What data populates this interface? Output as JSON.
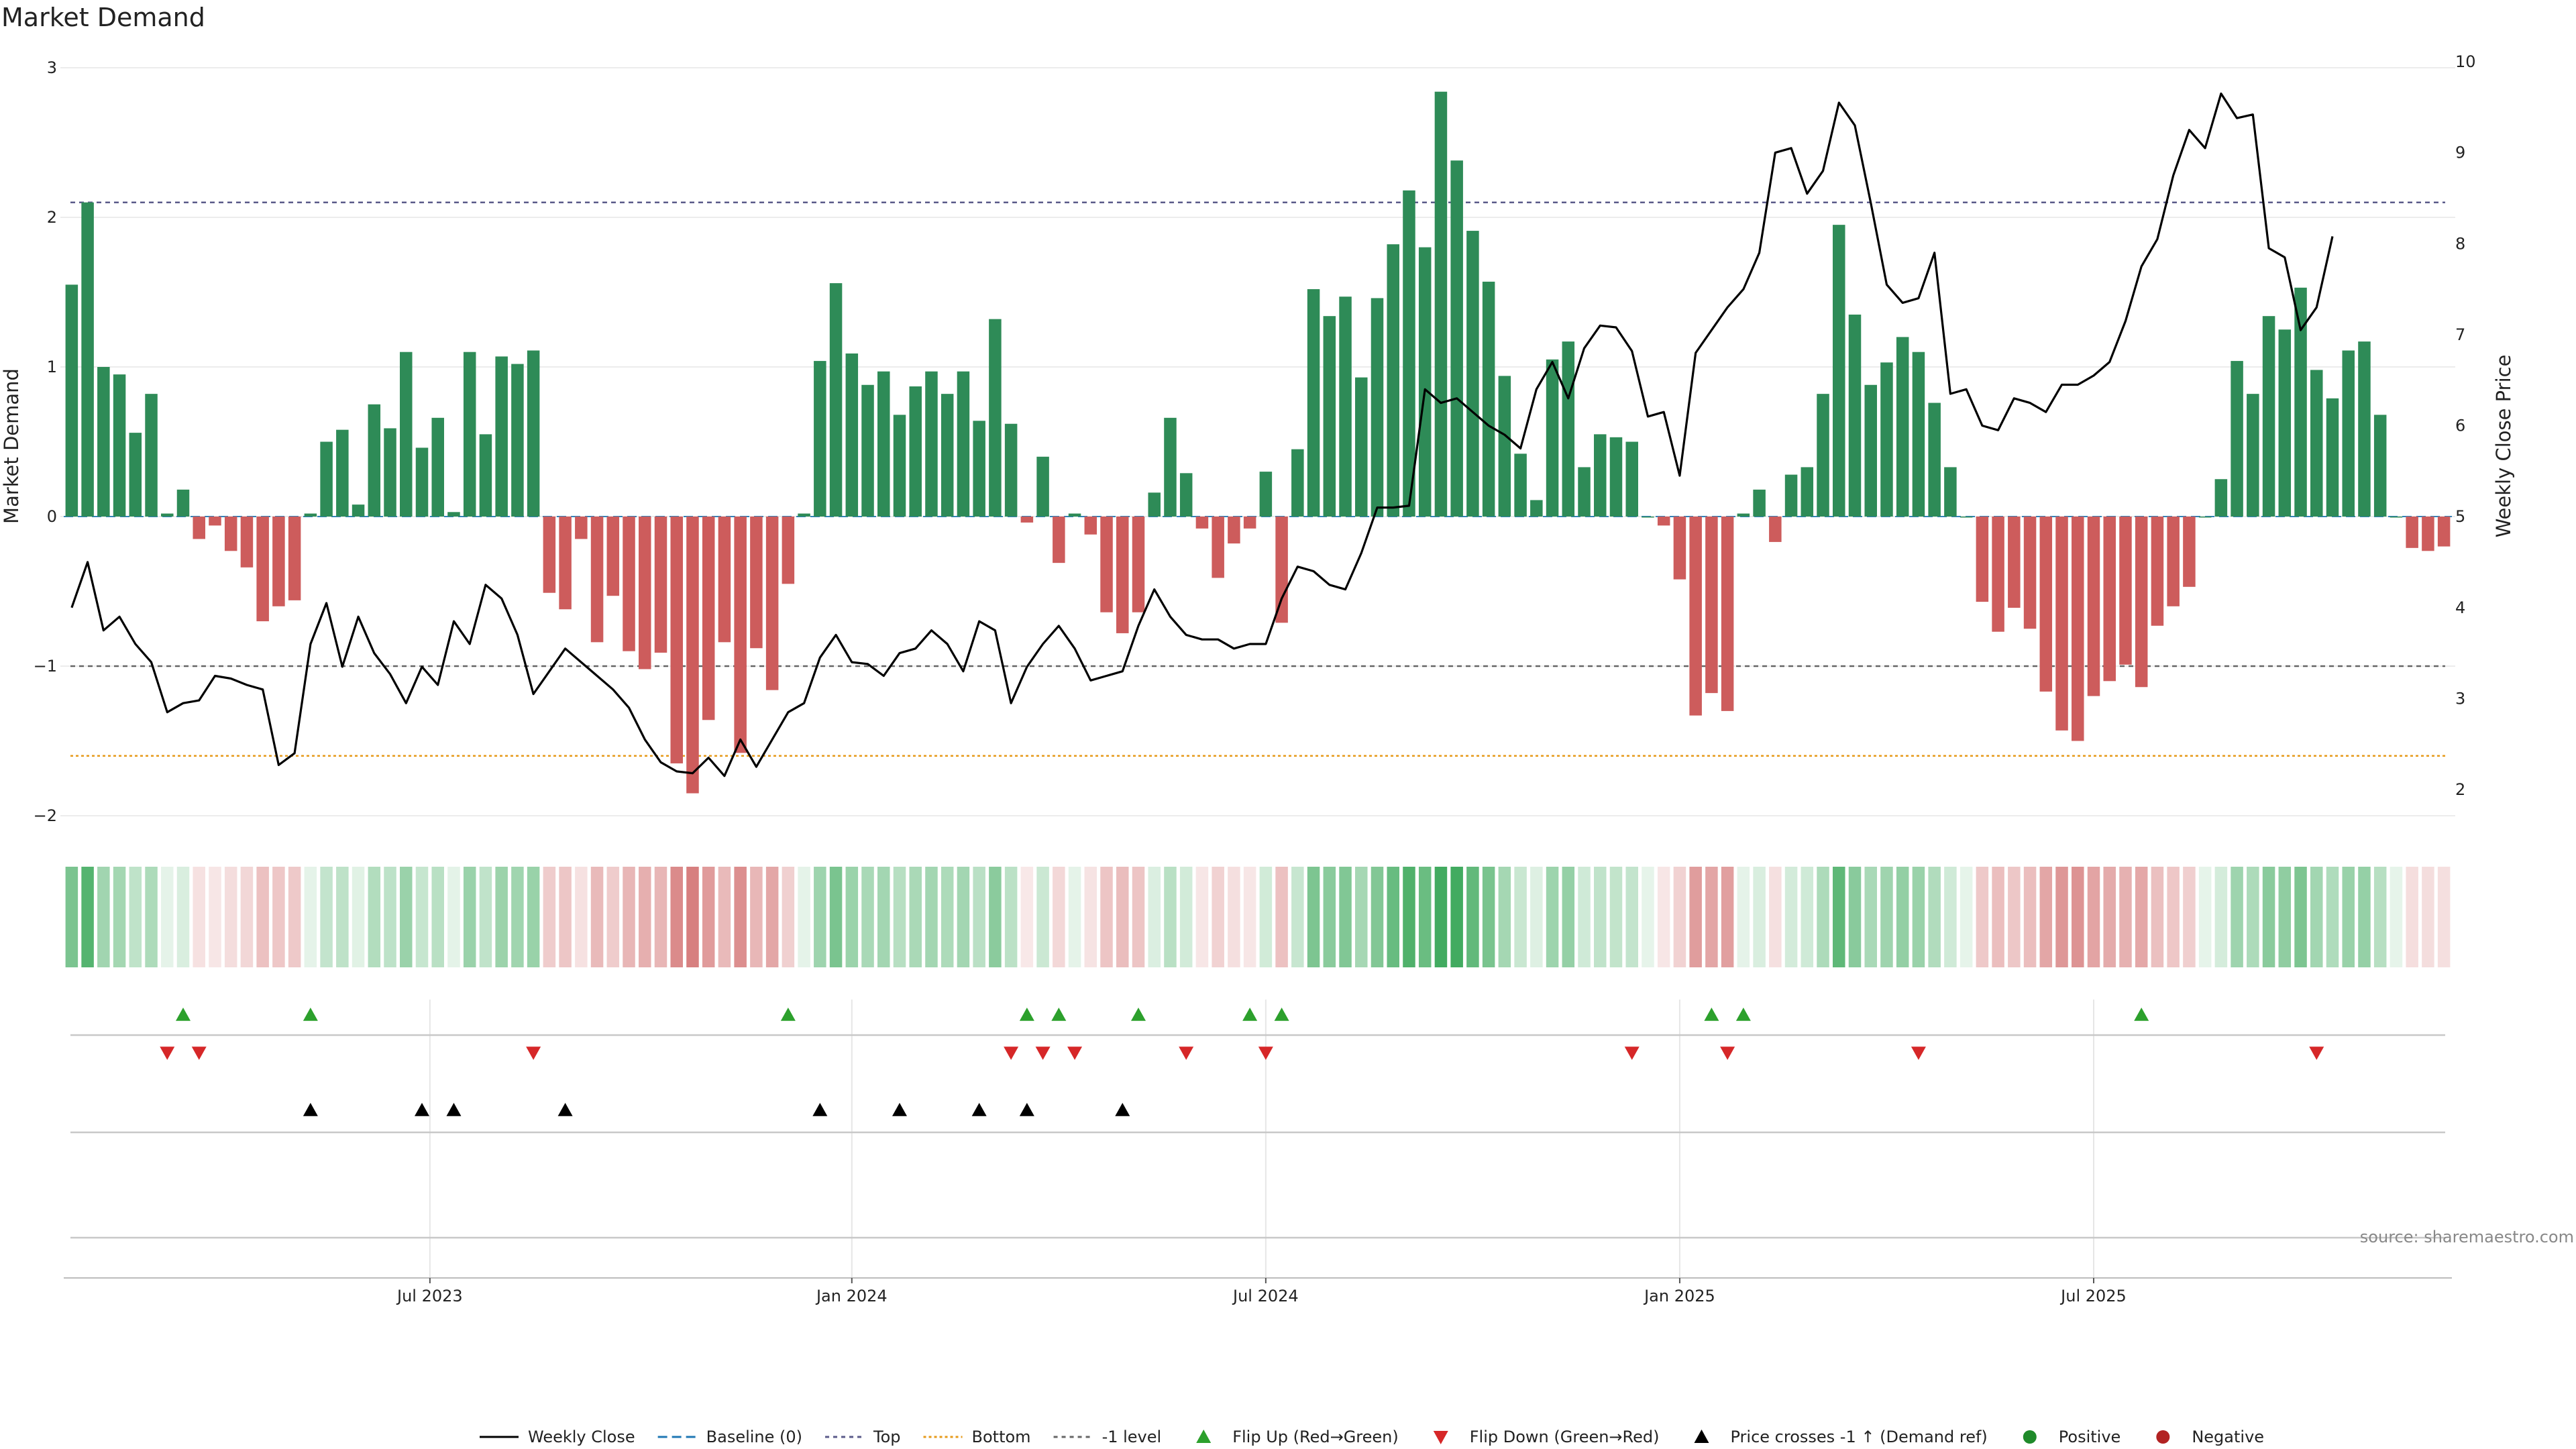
{
  "chart_data": {
    "type": "bar",
    "title": "Market Demand",
    "ylabel": "Market Demand",
    "ylabel_right": "Weekly Close Price",
    "ylim": [
      -2,
      3
    ],
    "ylim_right": [
      2,
      10
    ],
    "yticks": [
      -2,
      -1,
      0,
      1,
      2,
      3
    ],
    "yticks_right": [
      2,
      3,
      4,
      5,
      6,
      7,
      8,
      9,
      10
    ],
    "x_tick_labels": [
      "Jul 2023",
      "Jan 2024",
      "Jul 2024",
      "Jan 2025",
      "Jul 2025"
    ],
    "x_tick_weeks": [
      23,
      49.5,
      75.5,
      101.5,
      127.5
    ],
    "reference_lines": {
      "top": 2.1,
      "bottom": -1.6,
      "minus_one": -1
    },
    "series": [
      {
        "name": "Market Demand",
        "values": [
          1.55,
          2.1,
          1.0,
          0.95,
          0.56,
          0.82,
          0.02,
          0.18,
          -0.15,
          -0.06,
          -0.23,
          -0.34,
          -0.7,
          -0.6,
          -0.56,
          0.02,
          0.5,
          0.58,
          0.08,
          0.75,
          0.59,
          1.1,
          0.46,
          0.66,
          0.03,
          1.1,
          0.55,
          1.07,
          1.02,
          1.11,
          -0.51,
          -0.62,
          -0.15,
          -0.84,
          -0.53,
          -0.9,
          -1.02,
          -0.91,
          -1.65,
          -1.85,
          -1.36,
          -0.84,
          -1.58,
          -0.88,
          -1.16,
          -0.45,
          0.02,
          1.04,
          1.56,
          1.09,
          0.88,
          0.97,
          0.68,
          0.87,
          0.97,
          0.82,
          0.97,
          0.64,
          1.32,
          0.62,
          -0.04,
          0.4,
          -0.31,
          0.02,
          -0.12,
          -0.64,
          -0.78,
          -0.64,
          0.16,
          0.66,
          0.29,
          -0.08,
          -0.41,
          -0.18,
          -0.08,
          0.3,
          -0.71,
          0.45,
          1.52,
          1.34,
          1.47,
          0.93,
          1.46,
          1.82,
          2.18,
          1.8,
          2.84,
          2.38,
          1.91,
          1.57,
          0.94,
          0.42,
          0.11,
          1.05,
          1.17,
          0.33,
          0.55,
          0.53,
          0.5,
          0.0,
          -0.06,
          -0.42,
          -1.33,
          -1.18,
          -1.3,
          0.02,
          0.18,
          -0.17,
          0.28,
          0.33,
          0.82,
          1.95,
          1.35,
          0.88,
          1.03,
          1.2,
          1.1,
          0.76,
          0.33,
          0.0,
          -0.57,
          -0.77,
          -0.61,
          -0.75,
          -1.17,
          -1.43,
          -1.5,
          -1.2,
          -1.1,
          -0.99,
          -1.14,
          -0.73,
          -0.6,
          -0.47,
          0.0,
          0.25,
          1.04,
          0.82,
          1.34,
          1.25,
          1.53,
          0.98,
          0.79,
          1.11,
          1.17,
          0.68,
          0.0,
          -0.21,
          -0.23,
          -0.2
        ]
      },
      {
        "name": "Weekly Close",
        "axis": "right",
        "values": [
          4.0,
          4.5,
          3.75,
          3.9,
          3.6,
          3.4,
          2.85,
          2.95,
          2.98,
          3.25,
          3.22,
          3.15,
          3.1,
          2.27,
          2.4,
          3.6,
          4.05,
          3.35,
          3.9,
          3.5,
          3.27,
          2.95,
          3.35,
          3.15,
          3.85,
          3.6,
          4.25,
          4.1,
          3.7,
          3.05,
          3.3,
          3.55,
          3.4,
          3.25,
          3.1,
          2.9,
          2.55,
          2.3,
          2.2,
          2.18,
          2.35,
          2.15,
          2.55,
          2.25,
          2.55,
          2.85,
          2.95,
          3.45,
          3.7,
          3.4,
          3.38,
          3.25,
          3.5,
          3.55,
          3.75,
          3.6,
          3.3,
          3.85,
          3.75,
          2.95,
          3.35,
          3.6,
          3.8,
          3.55,
          3.2,
          3.25,
          3.3,
          3.8,
          4.2,
          3.9,
          3.7,
          3.65,
          3.65,
          3.55,
          3.6,
          3.6,
          4.1,
          4.45,
          4.4,
          4.25,
          4.2,
          4.6,
          5.1,
          5.1,
          5.12,
          6.4,
          6.25,
          6.3,
          6.15,
          6.0,
          5.9,
          5.75,
          6.4,
          6.7,
          6.3,
          6.85,
          7.1,
          7.08,
          6.82,
          6.1,
          6.15,
          5.45,
          6.8,
          7.05,
          7.3,
          7.5,
          7.9,
          9.0,
          9.05,
          8.55,
          8.8,
          9.55,
          9.3,
          8.45,
          7.55,
          7.35,
          7.4,
          7.9,
          6.35,
          6.4,
          6.0,
          5.95,
          6.3,
          6.25,
          6.15,
          6.45,
          6.45,
          6.55,
          6.7,
          7.15,
          7.75,
          8.05,
          8.75,
          9.25,
          9.05,
          9.65,
          9.38,
          9.42,
          7.95,
          7.85,
          7.05,
          7.3,
          8.08
        ]
      }
    ],
    "flip_up_weeks": [
      7,
      15,
      45,
      60,
      62,
      67,
      74,
      76,
      103,
      105,
      130
    ],
    "flip_down_weeks": [
      6,
      8,
      29,
      59,
      61,
      63,
      70,
      75,
      98,
      104,
      116,
      141
    ],
    "price_cross_weeks": [
      15,
      22,
      24,
      31,
      47,
      52,
      57,
      60,
      66
    ],
    "legend": [
      "Weekly Close",
      "Baseline (0)",
      "Top",
      "Bottom",
      "-1 level",
      "Flip Up (Red→Green)",
      "Flip Down (Green→Red)",
      "Price crosses -1 ↑ (Demand ref)",
      "Positive",
      "Negative"
    ],
    "source": "source: sharemaestro.com"
  },
  "colors": {
    "positive": "#2e8b57",
    "negative": "#cd5c5c",
    "price_line": "#000000",
    "flip_up": "#2ca02c",
    "flip_down": "#d62728",
    "top_line": "#5b5b8a",
    "bottom_line": "#e69a1a",
    "minus_one_line": "#666666",
    "baseline": "#1f77b4",
    "legend_positive_dot": "#1f8a2a",
    "legend_negative_dot": "#b22222"
  }
}
